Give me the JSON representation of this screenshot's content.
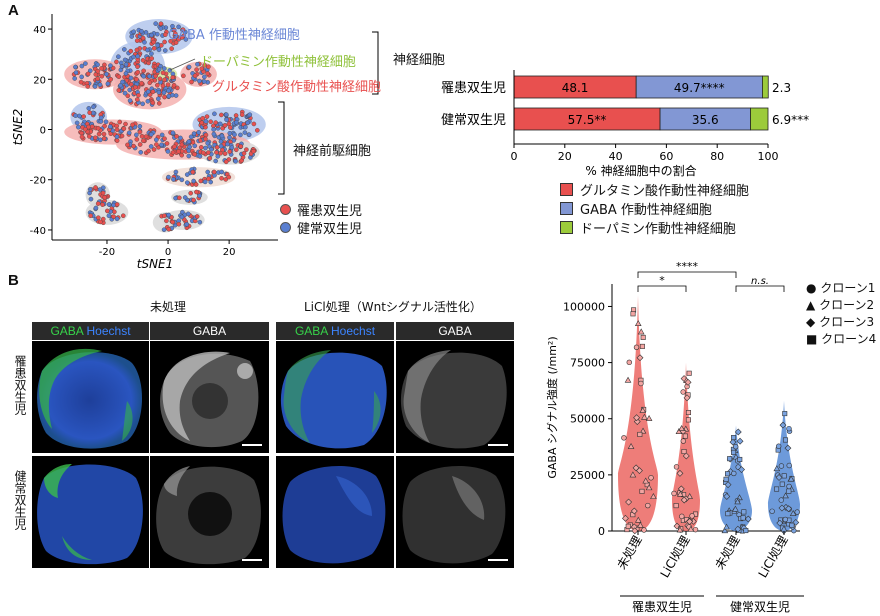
{
  "panel_a": {
    "letter": "A",
    "tsne": {
      "xlabel": "tSNE1",
      "ylabel": "tSNE2",
      "xticks": [
        -20,
        0,
        20
      ],
      "yticks": [
        40,
        20,
        0,
        -20,
        -40
      ],
      "xlim": [
        -38,
        36
      ],
      "ylim": [
        -44,
        46
      ],
      "cluster_labels": {
        "gaba": "GABA 作動性神経細胞",
        "dopamine": "ドーパミン作動性神経細胞",
        "glutamate": "グルタミン酸作動性神経細胞"
      },
      "bracket_neurons": "神経細胞",
      "bracket_progenitors": "神経前駆細胞",
      "legend": [
        {
          "label": "罹患双生児",
          "color": "#e8504f"
        },
        {
          "label": "健常双生児",
          "color": "#5a7fd0"
        }
      ]
    },
    "stacked_bar": {
      "xlabel": "% 神経細胞中の割合",
      "xticks": [
        "0",
        "20",
        "40",
        "60",
        "80",
        "100"
      ],
      "legend": [
        {
          "label": "グルタミン酸作動性神経細胞",
          "color": "#e8504f"
        },
        {
          "label": "GABA 作動性神経細胞",
          "color": "#8297d4"
        },
        {
          "label": "ドーパミン作動性神経細胞",
          "color": "#9ccb3b"
        }
      ]
    }
  },
  "panel_b": {
    "letter": "B",
    "col_titles": {
      "untreated": "未処理",
      "licl": "LiCl処理（Wntシグナル活性化）"
    },
    "hdr_gaba": "GABA",
    "hdr_hoechst": "Hoechst",
    "row_labels": [
      "罹患双生児",
      "健常双生児"
    ],
    "violin": {
      "ylabel": "GABA シグナル強度 (/mm²)",
      "yticks": [
        "0",
        "25000",
        "50000",
        "75000",
        "100000"
      ],
      "group_labels": [
        "罹患双生児",
        "健常双生児"
      ],
      "sig": {
        "top": "****",
        "mid": "*",
        "ns": "n.s."
      },
      "legend": [
        {
          "symbol": "●",
          "label": "クローン1"
        },
        {
          "symbol": "▲",
          "label": "クローン2"
        },
        {
          "symbol": "◆",
          "label": "クローン3"
        },
        {
          "symbol": "■",
          "label": "クローン4"
        }
      ]
    }
  },
  "chart_data": [
    {
      "type": "scatter",
      "xlabel": "tSNE1",
      "ylabel": "tSNE2",
      "xlim": [
        -38,
        36
      ],
      "ylim": [
        -44,
        46
      ],
      "series": [
        {
          "name": "罹患双生児",
          "color": "#e8504f"
        },
        {
          "name": "健常双生児",
          "color": "#5a7fd0"
        }
      ]
    },
    {
      "type": "bar",
      "orientation": "horizontal",
      "stacked": true,
      "categories": [
        "罹患双生児",
        "健常双生児"
      ],
      "xlabel": "% 神経細胞中の割合",
      "xlim": [
        0,
        100
      ],
      "series": [
        {
          "name": "グルタミン酸作動性神経細胞",
          "color": "#e8504f",
          "values": [
            48.1,
            57.5
          ],
          "labels": [
            "48.1",
            "57.5**"
          ]
        },
        {
          "name": "GABA 作動性神経細胞",
          "color": "#8297d4",
          "values": [
            49.7,
            35.6
          ],
          "labels": [
            "49.7****",
            "35.6"
          ]
        },
        {
          "name": "ドーパミン作動性神経細胞",
          "color": "#9ccb3b",
          "values": [
            2.3,
            6.9
          ],
          "labels": [
            "2.3",
            "6.9***"
          ]
        }
      ]
    },
    {
      "type": "violin",
      "categories": [
        "未処理",
        "LiCl処理",
        "未処理",
        "LiCl処理"
      ],
      "groups": [
        "罹患双生児",
        "罹患双生児",
        "健常双生児",
        "健常双生児"
      ],
      "colors": [
        "#ec6f6a",
        "#ec6f6a",
        "#5d8fd6",
        "#5d8fd6"
      ],
      "ylabel": "GABA シグナル強度 (/mm²)",
      "ylim": [
        0,
        110000
      ],
      "distributions": [
        {
          "min": 0,
          "max": 105000,
          "median": 25000
        },
        {
          "min": 0,
          "max": 75000,
          "median": 14000
        },
        {
          "min": 0,
          "max": 47000,
          "median": 9000
        },
        {
          "min": 0,
          "max": 58000,
          "median": 12000
        }
      ],
      "significance": [
        {
          "between": [
            0,
            2
          ],
          "label": "****"
        },
        {
          "between": [
            0,
            1
          ],
          "label": "*"
        },
        {
          "between": [
            2,
            3
          ],
          "label": "n.s."
        }
      ]
    }
  ]
}
